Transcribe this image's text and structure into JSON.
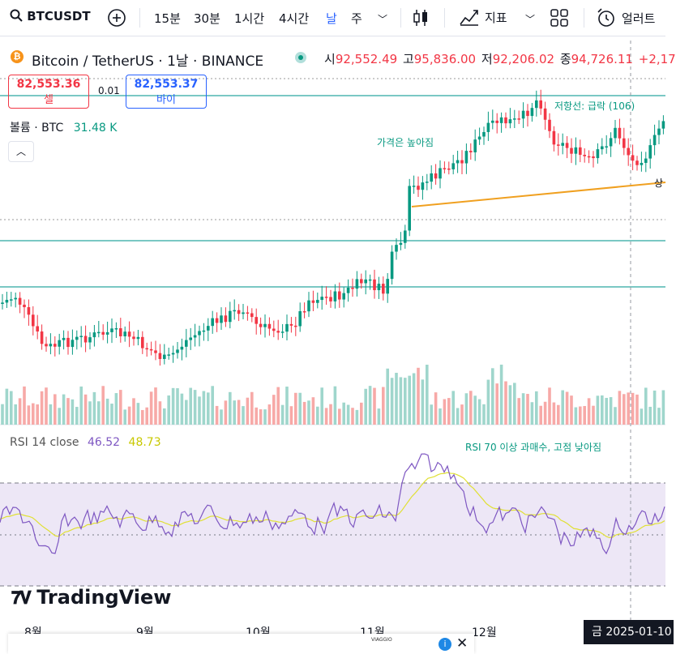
{
  "toolbar": {
    "symbol": "BTCUSDT",
    "intervals": [
      "15분",
      "30분",
      "1시간",
      "4시간",
      "날",
      "주"
    ],
    "indicators": "지표",
    "alerts": "얼러트"
  },
  "legend": {
    "title": "Bitcoin / TetherUS · 1날 · BINANCE",
    "open_label": "시",
    "open": "92,552.49",
    "high_label": "고",
    "high": "95,836.00",
    "low_label": "저",
    "low": "92,206.02",
    "close_label": "종",
    "close": "94,726.11",
    "change": "+2,17"
  },
  "trade": {
    "sell_price": "82,553.36",
    "sell_label": "셀",
    "spread": "0.01",
    "buy_price": "82,553.37",
    "buy_label": "바이"
  },
  "volume": {
    "label": "볼륨 · BTC",
    "value": "31.48 K"
  },
  "rsi": {
    "label": "RSI 14 close",
    "value1": "46.52",
    "value2": "48.73"
  },
  "annotations": {
    "price_rising": "가격은 높아짐",
    "resistance": "저항선: 급락 (106)",
    "rsi_note": "RSI 70 이상 과매수, 고점 낮아짐",
    "support_partial": "상"
  },
  "x_axis": [
    "8월",
    "9월",
    "10월",
    "11월",
    "12월"
  ],
  "crosshair_date": "금 2025-01-10",
  "brand": "TradingView",
  "ad_text": "VIAGGIO",
  "colors": {
    "up": "#089981",
    "down": "#f23645",
    "rsi": "#7e57c2",
    "rsi_ma": "#e0e034",
    "trend": "#f0a020",
    "level": "#4fb5b0"
  },
  "chart_data": {
    "type": "candlestick",
    "series": [
      {
        "name": "Bitcoin / TetherUS",
        "values": []
      }
    ]
  }
}
